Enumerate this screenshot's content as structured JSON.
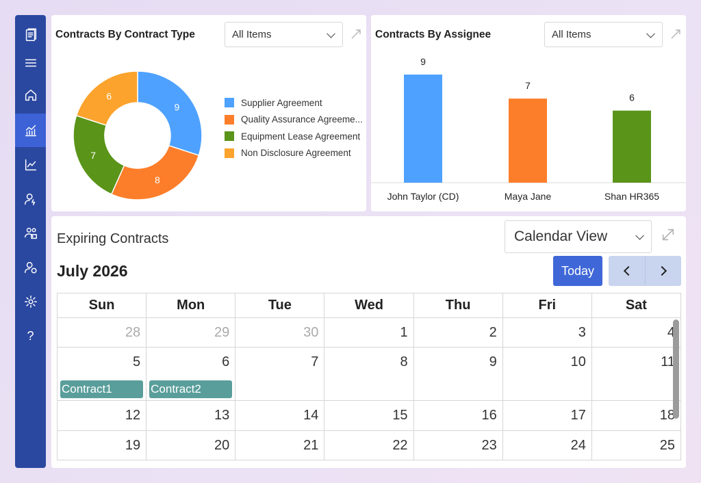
{
  "sidebar": {
    "items": [
      {
        "icon": "documents-logo-icon"
      },
      {
        "icon": "hamburger-menu-icon"
      },
      {
        "icon": "home-icon"
      },
      {
        "icon": "analytics-chart-icon",
        "active": true
      },
      {
        "icon": "trend-line-icon"
      },
      {
        "icon": "user-settings-icon"
      },
      {
        "icon": "team-icon"
      },
      {
        "icon": "users-sync-icon"
      },
      {
        "icon": "gear-icon"
      },
      {
        "icon": "help-icon",
        "glyph": "?"
      }
    ]
  },
  "donut_card": {
    "title": "Contracts By Contract Type",
    "filter": "All Items",
    "legend": [
      {
        "label": "Supplier Agreement",
        "color": "#4ea1ff"
      },
      {
        "label": "Quality Assurance Agreeme...",
        "color": "#fd7e2a"
      },
      {
        "label": "Equipment Lease Agreement",
        "color": "#5a9419"
      },
      {
        "label": "Non Disclosure Agreement",
        "color": "#fba32c"
      }
    ]
  },
  "bar_card": {
    "title": "Contracts By Assignee",
    "filter": "All Items"
  },
  "chart_data": [
    {
      "type": "pie",
      "title": "Contracts By Contract Type",
      "categories": [
        "Supplier Agreement",
        "Quality Assurance Agreeme...",
        "Equipment Lease Agreement",
        "Non Disclosure Agreement"
      ],
      "values": [
        9,
        8,
        7,
        6
      ],
      "labels": [
        "9",
        "8",
        "7",
        "6"
      ],
      "colors": [
        "#4ea1ff",
        "#fd7e2a",
        "#5a9419",
        "#fba32c"
      ],
      "donut": true,
      "legend": "right"
    },
    {
      "type": "bar",
      "title": "Contracts By Assignee",
      "categories": [
        "John Taylor (CD)",
        "Maya Jane",
        "Shan HR365"
      ],
      "values": [
        9,
        7,
        6
      ],
      "labels": [
        "9",
        "7",
        "6"
      ],
      "colors": [
        "#4ea1ff",
        "#fd7e2a",
        "#5a9419"
      ],
      "ylim": [
        0,
        10
      ],
      "grid": false
    }
  ],
  "calendar": {
    "heading": "Expiring Contracts",
    "view": "Calendar View",
    "month": "July 2026",
    "today_label": "Today",
    "weekdays": [
      "Sun",
      "Mon",
      "Tue",
      "Wed",
      "Thu",
      "Fri",
      "Sat"
    ],
    "weeks": [
      [
        {
          "d": "28",
          "other": true
        },
        {
          "d": "29",
          "other": true
        },
        {
          "d": "30",
          "other": true
        },
        {
          "d": "1"
        },
        {
          "d": "2"
        },
        {
          "d": "3"
        },
        {
          "d": "4"
        }
      ],
      [
        {
          "d": "5",
          "event": "Contract1"
        },
        {
          "d": "6",
          "event": "Contract2"
        },
        {
          "d": "7"
        },
        {
          "d": "8"
        },
        {
          "d": "9"
        },
        {
          "d": "10"
        },
        {
          "d": "11"
        }
      ],
      [
        {
          "d": "12"
        },
        {
          "d": "13"
        },
        {
          "d": "14"
        },
        {
          "d": "15"
        },
        {
          "d": "16"
        },
        {
          "d": "17"
        },
        {
          "d": "18"
        }
      ],
      [
        {
          "d": "19"
        },
        {
          "d": "20"
        },
        {
          "d": "21"
        },
        {
          "d": "22"
        },
        {
          "d": "23"
        },
        {
          "d": "24"
        },
        {
          "d": "25"
        }
      ]
    ]
  }
}
